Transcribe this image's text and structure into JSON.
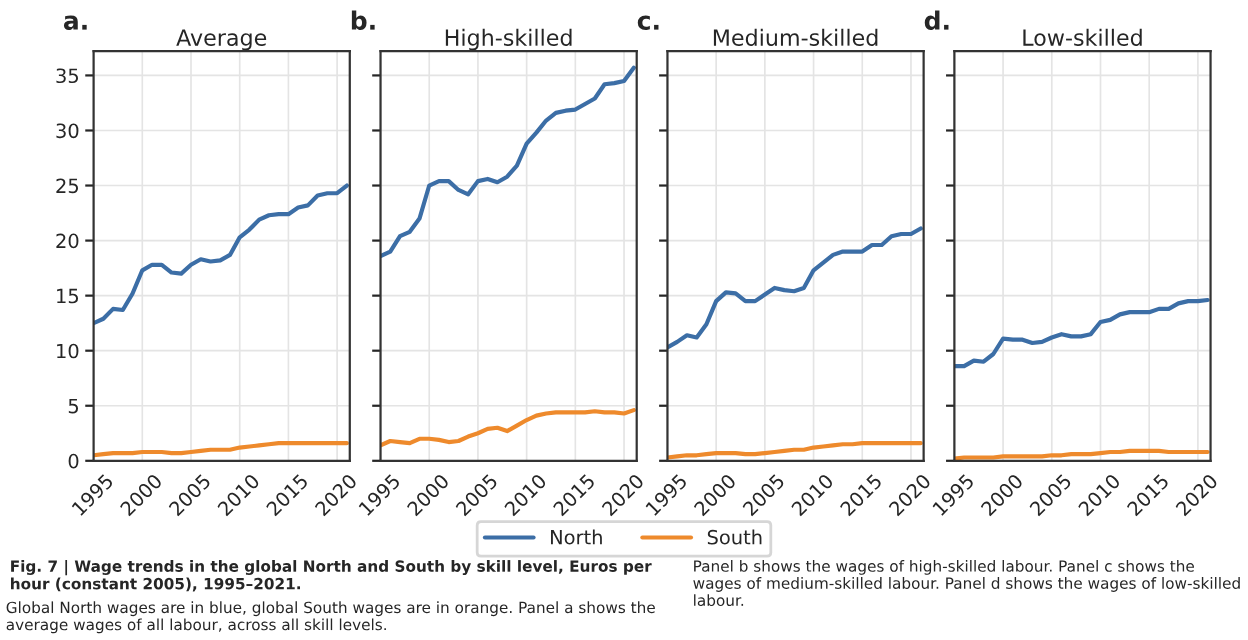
{
  "chart_data": [
    {
      "type": "line",
      "title": "Average",
      "annotations": [
        "a.",
        "Fig. 7 | Wage trends in the global North and South by skill level, Euros per hour (constant 2005), 1995–2021.",
        "Global North wages are in blue, global South wages are in orange. Panel a shows the average wages of all labour, across all skill levels.",
        "Panel b shows the wages of high-skilled labour. Panel c shows the wages of medium-skilled labour. Panel d shows the wages of low-skilled labour."
      ],
      "x": [
        1995,
        1996,
        1997,
        1998,
        1999,
        2000,
        2001,
        2002,
        2003,
        2004,
        2005,
        2006,
        2007,
        2008,
        2009,
        2010,
        2011,
        2012,
        2013,
        2014,
        2015,
        2016,
        2017,
        2018,
        2019,
        2020,
        2021
      ],
      "series": [
        {
          "name": "North",
          "color": "#3c6ea6",
          "values": [
            12.5,
            12.9,
            13.8,
            13.7,
            15.2,
            17.3,
            17.8,
            17.8,
            17.1,
            17.0,
            17.8,
            18.3,
            18.1,
            18.2,
            18.7,
            20.3,
            21.0,
            21.9,
            22.3,
            22.4,
            22.4,
            23.0,
            23.2,
            24.1,
            24.3,
            24.3,
            25.0
          ]
        },
        {
          "name": "South",
          "color": "#ee8a2c",
          "values": [
            0.5,
            0.6,
            0.7,
            0.7,
            0.7,
            0.8,
            0.8,
            0.8,
            0.7,
            0.7,
            0.8,
            0.9,
            1.0,
            1.0,
            1.0,
            1.2,
            1.3,
            1.4,
            1.5,
            1.6,
            1.6,
            1.6,
            1.6,
            1.6,
            1.6,
            1.6,
            1.6
          ]
        }
      ],
      "xlim": [
        1995,
        2021.3
      ],
      "ylim": [
        0,
        37.2
      ],
      "xticks": [
        1995,
        2000,
        2005,
        2010,
        2015,
        2020
      ],
      "yticks": [
        0,
        5,
        10,
        15,
        20,
        25,
        30,
        35
      ],
      "grid": true,
      "legend": "bottom"
    },
    {
      "type": "line",
      "title": "High-skilled",
      "annotations": [
        "b."
      ],
      "x": [
        1995,
        1996,
        1997,
        1998,
        1999,
        2000,
        2001,
        2002,
        2003,
        2004,
        2005,
        2006,
        2007,
        2008,
        2009,
        2010,
        2011,
        2012,
        2013,
        2014,
        2015,
        2016,
        2017,
        2018,
        2019,
        2020,
        2021
      ],
      "series": [
        {
          "color": "#3c6ea6",
          "values": [
            18.6,
            19.0,
            20.4,
            20.8,
            22.0,
            25.0,
            25.4,
            25.4,
            24.6,
            24.2,
            25.4,
            25.6,
            25.3,
            25.8,
            26.8,
            28.8,
            29.8,
            30.9,
            31.6,
            31.8,
            31.9,
            32.4,
            32.9,
            34.2,
            34.3,
            34.5,
            35.7
          ]
        },
        {
          "color": "#ee8a2c",
          "values": [
            1.4,
            1.8,
            1.7,
            1.6,
            2.0,
            2.0,
            1.9,
            1.7,
            1.8,
            2.2,
            2.5,
            2.9,
            3.0,
            2.7,
            3.2,
            3.7,
            4.1,
            4.3,
            4.4,
            4.4,
            4.4,
            4.4,
            4.5,
            4.4,
            4.4,
            4.3,
            4.6
          ]
        }
      ],
      "xlim": [
        1995,
        2021.3
      ],
      "ylim": [
        0,
        37.2
      ],
      "xticks": [
        1995,
        2000,
        2005,
        2010,
        2015,
        2020
      ],
      "yticks": [
        0,
        5,
        10,
        15,
        20,
        25,
        30,
        35
      ],
      "grid": true,
      "tick_labels": "x"
    },
    {
      "type": "line",
      "title": "Medium-skilled",
      "annotations": [
        "c."
      ],
      "x": [
        1995,
        1996,
        1997,
        1998,
        1999,
        2000,
        2001,
        2002,
        2003,
        2004,
        2005,
        2006,
        2007,
        2008,
        2009,
        2010,
        2011,
        2012,
        2013,
        2014,
        2015,
        2016,
        2017,
        2018,
        2019,
        2020,
        2021
      ],
      "series": [
        {
          "color": "#3c6ea6",
          "values": [
            10.3,
            10.8,
            11.4,
            11.2,
            12.4,
            14.5,
            15.3,
            15.2,
            14.5,
            14.5,
            15.1,
            15.7,
            15.5,
            15.4,
            15.7,
            17.3,
            18.0,
            18.7,
            19.0,
            19.0,
            19.0,
            19.6,
            19.6,
            20.4,
            20.6,
            20.6,
            21.1
          ]
        },
        {
          "color": "#ee8a2c",
          "values": [
            0.3,
            0.4,
            0.5,
            0.5,
            0.6,
            0.7,
            0.7,
            0.7,
            0.6,
            0.6,
            0.7,
            0.8,
            0.9,
            1.0,
            1.0,
            1.2,
            1.3,
            1.4,
            1.5,
            1.5,
            1.6,
            1.6,
            1.6,
            1.6,
            1.6,
            1.6,
            1.6
          ]
        }
      ],
      "xlim": [
        1995,
        2021.3
      ],
      "ylim": [
        0,
        37.2
      ],
      "xticks": [
        1995,
        2000,
        2005,
        2010,
        2015,
        2020
      ],
      "yticks": [
        0,
        5,
        10,
        15,
        20,
        25,
        30,
        35
      ],
      "grid": true,
      "tick_labels": "x"
    },
    {
      "type": "line",
      "title": "Low-skilled",
      "annotations": [
        "d."
      ],
      "x": [
        1995,
        1996,
        1997,
        1998,
        1999,
        2000,
        2001,
        2002,
        2003,
        2004,
        2005,
        2006,
        2007,
        2008,
        2009,
        2010,
        2011,
        2012,
        2013,
        2014,
        2015,
        2016,
        2017,
        2018,
        2019,
        2020,
        2021
      ],
      "series": [
        {
          "color": "#3c6ea6",
          "values": [
            8.6,
            8.6,
            9.1,
            9.0,
            9.7,
            11.1,
            11.0,
            11.0,
            10.7,
            10.8,
            11.2,
            11.5,
            11.3,
            11.3,
            11.5,
            12.6,
            12.8,
            13.3,
            13.5,
            13.5,
            13.5,
            13.8,
            13.8,
            14.3,
            14.5,
            14.5,
            14.6
          ]
        },
        {
          "color": "#ee8a2c",
          "values": [
            0.2,
            0.3,
            0.3,
            0.3,
            0.3,
            0.4,
            0.4,
            0.4,
            0.4,
            0.4,
            0.5,
            0.5,
            0.6,
            0.6,
            0.6,
            0.7,
            0.8,
            0.8,
            0.9,
            0.9,
            0.9,
            0.9,
            0.8,
            0.8,
            0.8,
            0.8,
            0.8
          ]
        }
      ],
      "xlim": [
        1995,
        2021.3
      ],
      "ylim": [
        0,
        37.2
      ],
      "xticks": [
        1995,
        2000,
        2005,
        2010,
        2015,
        2020
      ],
      "yticks": [
        0,
        5,
        10,
        15,
        20,
        25,
        30,
        35
      ],
      "grid": true,
      "tick_labels": "x"
    }
  ]
}
